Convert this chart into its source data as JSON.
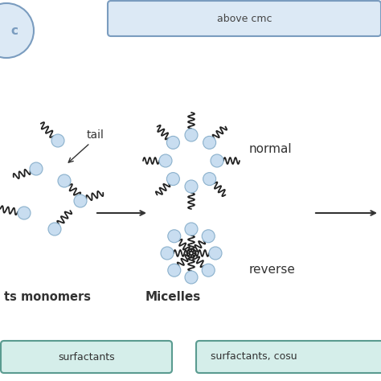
{
  "bg_color": "#ffffff",
  "top_banner_color": "#dce9f5",
  "top_banner_border": "#7a9cbf",
  "top_banner_text": "above cmc",
  "top_banner_text_color": "#444444",
  "bottom_banner1_color": "#d5eeea",
  "bottom_banner1_border": "#5a9b90",
  "bottom_banner1_text": "surfactants",
  "bottom_banner2_color": "#d5eeea",
  "bottom_banner2_border": "#5a9b90",
  "bottom_banner2_text": "surfactants, cosu",
  "left_circle_color": "#dce9f5",
  "left_circle_border": "#7a9cbf",
  "left_circle_text": "c",
  "monomer_head_color": "#c8ddf0",
  "monomer_head_border": "#8ab0cc",
  "arrow_color": "#333333",
  "label_tail": "tail",
  "label_monomers": "ts monomers",
  "label_micelles": "Micelles",
  "label_normal": "normal",
  "label_reverse": "reverse",
  "text_color": "#333333"
}
